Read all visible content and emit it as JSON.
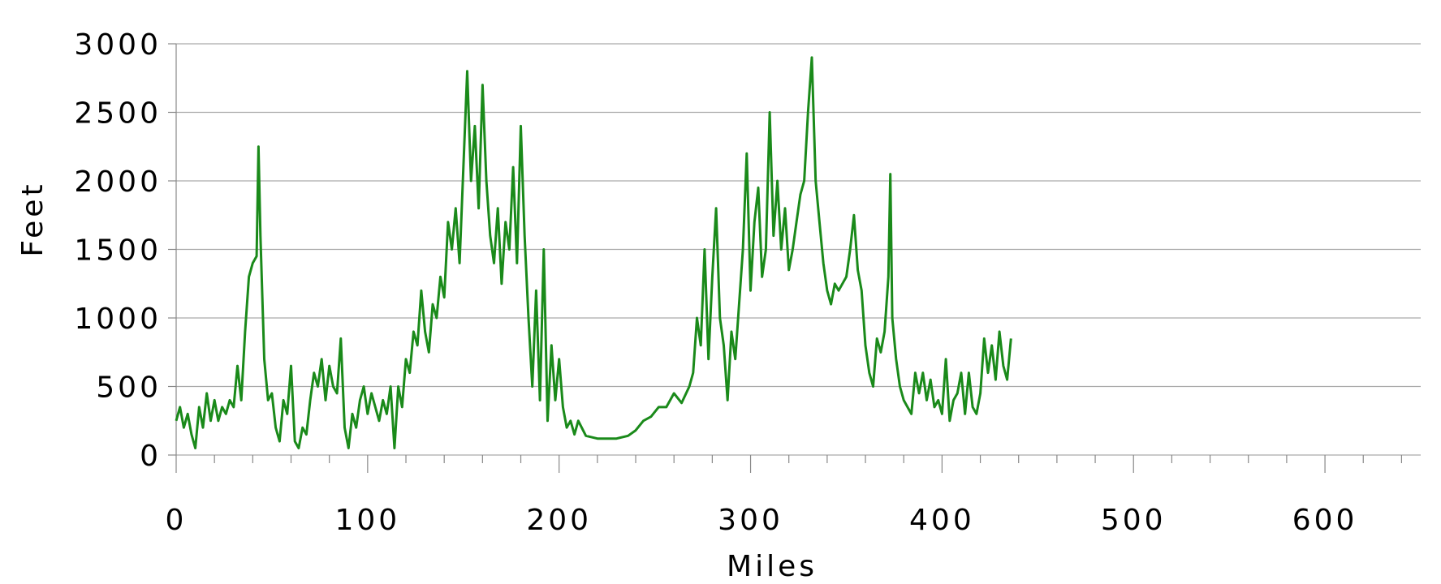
{
  "chart_data": {
    "type": "line",
    "x_label": "Miles",
    "y_label": "Feet",
    "xlim": [
      0,
      650
    ],
    "xticks": [
      0,
      100,
      200,
      300,
      400,
      500,
      600
    ],
    "xminorticks": [
      20,
      40,
      60,
      80,
      120,
      140,
      160,
      180,
      220,
      240,
      260,
      280,
      320,
      340,
      360,
      380,
      420,
      440,
      460,
      480,
      520,
      540,
      560,
      580,
      620,
      640
    ],
    "ylim": [
      0,
      3000
    ],
    "yticks": [
      0,
      500,
      1000,
      1500,
      2000,
      2500,
      3000
    ],
    "grid": true,
    "series": [
      {
        "color": "#1a8a1a",
        "x": [
          0,
          2,
          4,
          6,
          8,
          10,
          12,
          14,
          16,
          18,
          20,
          22,
          24,
          26,
          28,
          30,
          32,
          34,
          36,
          38,
          40,
          42,
          43,
          44,
          46,
          48,
          50,
          52,
          54,
          56,
          58,
          60,
          62,
          64,
          66,
          68,
          70,
          72,
          74,
          76,
          78,
          80,
          82,
          84,
          86,
          88,
          90,
          92,
          94,
          96,
          98,
          100,
          102,
          104,
          106,
          108,
          110,
          112,
          114,
          116,
          118,
          120,
          122,
          124,
          126,
          128,
          130,
          132,
          134,
          136,
          138,
          140,
          142,
          144,
          146,
          148,
          150,
          152,
          154,
          156,
          158,
          160,
          162,
          164,
          166,
          168,
          170,
          172,
          174,
          176,
          178,
          180,
          182,
          184,
          186,
          188,
          190,
          192,
          194,
          196,
          198,
          200,
          202,
          204,
          206,
          208,
          210,
          214,
          220,
          230,
          236,
          240,
          244,
          248,
          252,
          256,
          260,
          264,
          268,
          270,
          272,
          274,
          276,
          278,
          280,
          282,
          284,
          286,
          288,
          290,
          292,
          294,
          296,
          298,
          300,
          302,
          304,
          306,
          308,
          310,
          312,
          314,
          316,
          318,
          320,
          322,
          324,
          326,
          328,
          330,
          332,
          334,
          336,
          338,
          340,
          342,
          344,
          346,
          348,
          350,
          352,
          354,
          356,
          358,
          360,
          362,
          364,
          366,
          368,
          370,
          372,
          373,
          374,
          376,
          378,
          380,
          382,
          384,
          386,
          388,
          390,
          392,
          394,
          396,
          398,
          400,
          402,
          404,
          406,
          408,
          410,
          412,
          414,
          416,
          418,
          420,
          422,
          424,
          426,
          428,
          430,
          432,
          434,
          436
        ],
        "values": [
          250,
          350,
          200,
          300,
          150,
          50,
          350,
          200,
          450,
          250,
          400,
          250,
          350,
          300,
          400,
          350,
          650,
          400,
          900,
          1300,
          1400,
          1450,
          2250,
          1600,
          700,
          400,
          450,
          200,
          100,
          400,
          300,
          650,
          100,
          50,
          200,
          150,
          400,
          600,
          500,
          700,
          400,
          650,
          500,
          450,
          850,
          200,
          50,
          300,
          200,
          400,
          500,
          300,
          450,
          350,
          250,
          400,
          300,
          500,
          50,
          500,
          350,
          700,
          600,
          900,
          800,
          1200,
          900,
          750,
          1100,
          1000,
          1300,
          1150,
          1700,
          1500,
          1800,
          1400,
          2100,
          2800,
          2000,
          2400,
          1800,
          2700,
          2000,
          1600,
          1400,
          1800,
          1250,
          1700,
          1500,
          2100,
          1400,
          2400,
          1600,
          1000,
          500,
          1200,
          400,
          1500,
          250,
          800,
          400,
          700,
          350,
          200,
          250,
          150,
          250,
          140,
          120,
          120,
          140,
          180,
          250,
          280,
          350,
          350,
          450,
          380,
          500,
          600,
          1000,
          800,
          1500,
          700,
          1300,
          1800,
          1000,
          800,
          400,
          900,
          700,
          1100,
          1500,
          2200,
          1200,
          1700,
          1950,
          1300,
          1500,
          2500,
          1600,
          2000,
          1500,
          1800,
          1350,
          1500,
          1700,
          1900,
          2000,
          2500,
          2900,
          2000,
          1700,
          1400,
          1200,
          1100,
          1250,
          1200,
          1250,
          1300,
          1500,
          1750,
          1350,
          1200,
          800,
          600,
          500,
          850,
          750,
          900,
          1300,
          2050,
          1000,
          700,
          500,
          400,
          350,
          300,
          600,
          450,
          600,
          400,
          550,
          350,
          400,
          300,
          700,
          250,
          400,
          450,
          600,
          300,
          600,
          350,
          300,
          450,
          850,
          600,
          800,
          550,
          900,
          650,
          550,
          850
        ]
      }
    ]
  }
}
